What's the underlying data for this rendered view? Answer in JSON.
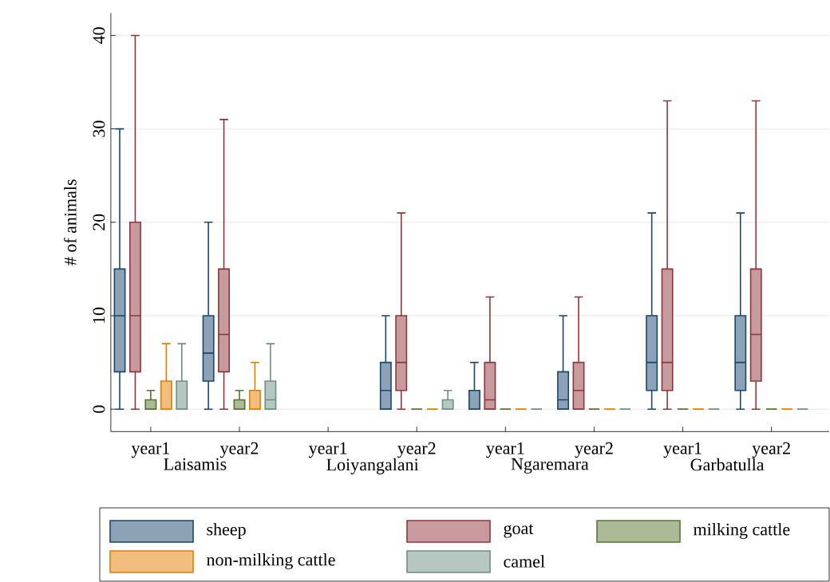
{
  "chart_data": {
    "type": "box",
    "ylabel": "# of animals",
    "categories": [
      "year1",
      "year2",
      "year1",
      "year2",
      "year1",
      "year2",
      "year1",
      "year2"
    ],
    "annotations": [
      "Laisamis",
      "Loiyangalani",
      "Ngaremara",
      "Garbatulla"
    ],
    "ylim": [
      -2.4,
      42.4
    ],
    "yticks": [
      0,
      10,
      20,
      30,
      40
    ],
    "grid": "y",
    "legend": "bottom",
    "series": [
      {
        "name": "sheep",
        "color": "#1a476f",
        "boxes": [
          {
            "low": 0,
            "q1": 4,
            "median": 10,
            "q3": 15,
            "high": 30
          },
          {
            "low": 0,
            "q1": 3,
            "median": 6,
            "q3": 10,
            "high": 20
          },
          null,
          {
            "low": 0,
            "q1": 0,
            "median": 2,
            "q3": 5,
            "high": 10
          },
          {
            "low": 0,
            "q1": 0,
            "median": 0,
            "q3": 2,
            "high": 5
          },
          {
            "low": 0,
            "q1": 0,
            "median": 1,
            "q3": 4,
            "high": 10
          },
          {
            "low": 0,
            "q1": 2,
            "median": 5,
            "q3": 10,
            "high": 21
          },
          {
            "low": 0,
            "q1": 2,
            "median": 5,
            "q3": 10,
            "high": 21
          }
        ]
      },
      {
        "name": "goat",
        "color": "#90353b",
        "boxes": [
          {
            "low": 0,
            "q1": 4,
            "median": 10,
            "q3": 20,
            "high": 40
          },
          {
            "low": 0,
            "q1": 4,
            "median": 8,
            "q3": 15,
            "high": 31
          },
          null,
          {
            "low": 0,
            "q1": 2,
            "median": 5,
            "q3": 10,
            "high": 21
          },
          {
            "low": 0,
            "q1": 0,
            "median": 1,
            "q3": 5,
            "high": 12
          },
          {
            "low": 0,
            "q1": 0,
            "median": 2,
            "q3": 5,
            "high": 12
          },
          {
            "low": 0,
            "q1": 2,
            "median": 5,
            "q3": 15,
            "high": 33
          },
          {
            "low": 0,
            "q1": 3,
            "median": 8,
            "q3": 15,
            "high": 33
          }
        ]
      },
      {
        "name": "milking cattle",
        "color": "#55752f",
        "boxes": [
          {
            "low": 0,
            "q1": 0,
            "median": 0,
            "q3": 1,
            "high": 2
          },
          {
            "low": 0,
            "q1": 0,
            "median": 0,
            "q3": 1,
            "high": 2
          },
          null,
          {
            "low": 0,
            "q1": 0,
            "median": 0,
            "q3": 0,
            "high": 0
          },
          {
            "low": 0,
            "q1": 0,
            "median": 0,
            "q3": 0,
            "high": 0
          },
          {
            "low": 0,
            "q1": 0,
            "median": 0,
            "q3": 0,
            "high": 0
          },
          {
            "low": 0,
            "q1": 0,
            "median": 0,
            "q3": 0,
            "high": 0
          },
          {
            "low": 0,
            "q1": 0,
            "median": 0,
            "q3": 0,
            "high": 0
          }
        ]
      },
      {
        "name": "non-milking cattle",
        "color": "#e37e00",
        "boxes": [
          {
            "low": 0,
            "q1": 0,
            "median": 0,
            "q3": 3,
            "high": 7
          },
          {
            "low": 0,
            "q1": 0,
            "median": 0,
            "q3": 2,
            "high": 5
          },
          null,
          {
            "low": 0,
            "q1": 0,
            "median": 0,
            "q3": 0,
            "high": 0
          },
          {
            "low": 0,
            "q1": 0,
            "median": 0,
            "q3": 0,
            "high": 0
          },
          {
            "low": 0,
            "q1": 0,
            "median": 0,
            "q3": 0,
            "high": 0
          },
          {
            "low": 0,
            "q1": 0,
            "median": 0,
            "q3": 0,
            "high": 0
          },
          {
            "low": 0,
            "q1": 0,
            "median": 0,
            "q3": 0,
            "high": 0
          }
        ]
      },
      {
        "name": "camel",
        "color": "#6e8e84",
        "boxes": [
          {
            "low": 0,
            "q1": 0,
            "median": 0,
            "q3": 3,
            "high": 7
          },
          {
            "low": 0,
            "q1": 0,
            "median": 1,
            "q3": 3,
            "high": 7
          },
          null,
          {
            "low": 0,
            "q1": 0,
            "median": 0,
            "q3": 1,
            "high": 2
          },
          {
            "low": 0,
            "q1": 0,
            "median": 0,
            "q3": 0,
            "high": 0
          },
          {
            "low": 0,
            "q1": 0,
            "median": 0,
            "q3": 0,
            "high": 0
          },
          {
            "low": 0,
            "q1": 0,
            "median": 0,
            "q3": 0,
            "high": 0
          },
          {
            "low": 0,
            "q1": 0,
            "median": 0,
            "q3": 0,
            "high": 0
          }
        ]
      }
    ]
  }
}
